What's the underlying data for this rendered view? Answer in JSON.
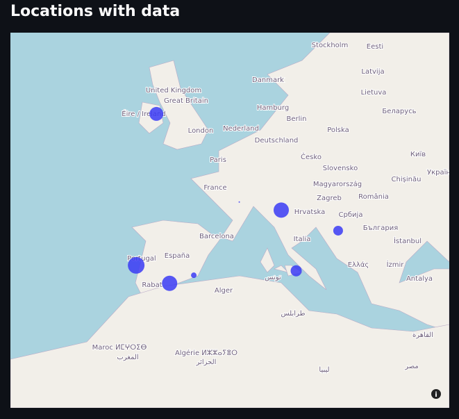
{
  "header": {
    "title": "Locations with data"
  },
  "map": {
    "marker_color": "#3b3bf5",
    "points": [
      {
        "lat": 53.35,
        "lon": -6.26,
        "size": 10
      },
      {
        "lat": 44.5,
        "lon": 11.3,
        "size": 11
      },
      {
        "lat": 42.4,
        "lon": 19.3,
        "size": 7
      },
      {
        "lat": 38.1,
        "lon": 13.4,
        "size": 8
      },
      {
        "lat": 38.7,
        "lon": -9.1,
        "size": 12
      },
      {
        "lat": 36.7,
        "lon": -4.4,
        "size": 11
      },
      {
        "lat": 37.6,
        "lon": -1.0,
        "size": 4
      },
      {
        "lat": 45.3,
        "lon": 5.4,
        "size": 1
      }
    ],
    "labels": [
      "Stockholm",
      "Eesti",
      "Latvija",
      "Danmark",
      "Lietuva",
      "United Kingdom",
      "Great Britain",
      "Hamburg",
      "Беларусь",
      "Berlin",
      "Éire / Ireland",
      "London",
      "Nederland",
      "Polska",
      "Deutschland",
      "Paris",
      "Česko",
      "Slovensko",
      "Київ",
      "Україна",
      "France",
      "Magyarország",
      "Chișinău",
      "Zagreb",
      "România",
      "Hrvatska",
      "Србија",
      "България",
      "Barcelona",
      "Italia",
      "İstanbul",
      "Portugal",
      "España",
      "Ελλάς",
      "İzmir",
      "Rabat",
      "Alger",
      "Antalya",
      "تونس",
      "طرابلس",
      "القاهرة",
      "مصر",
      "ليبيا",
      "Maroc ⵍⵎⵖⵔⵉⴱ",
      "المغرب",
      "Algérie ⵍⵣⵣⴰⵢⴻⵔ",
      "الجزائر"
    ]
  }
}
